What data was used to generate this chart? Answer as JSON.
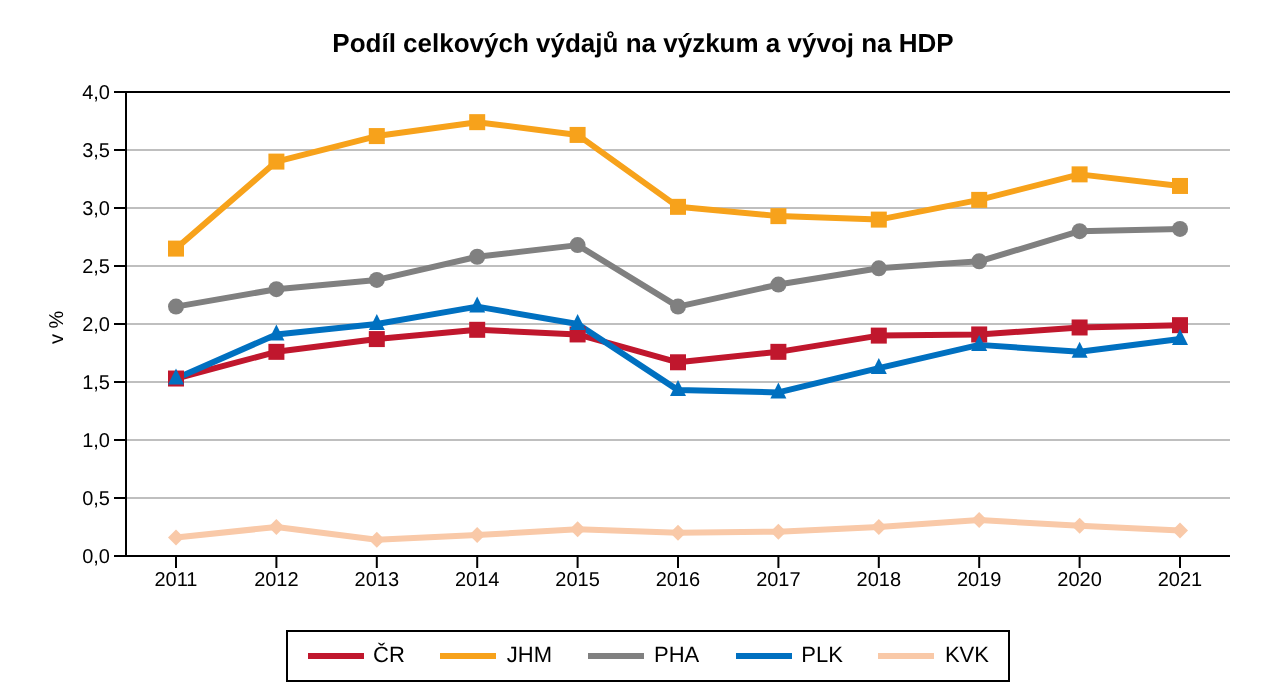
{
  "chart_data": {
    "type": "line",
    "title": "Podíl celkových výdajů na výzkum a vývoj na HDP",
    "ylabel": "v %",
    "categories": [
      "2011",
      "2012",
      "2013",
      "2014",
      "2015",
      "2016",
      "2017",
      "2018",
      "2019",
      "2020",
      "2021"
    ],
    "series": [
      {
        "name": "ČR",
        "color": "#c0172d",
        "marker": "square",
        "values": [
          1.53,
          1.76,
          1.87,
          1.95,
          1.91,
          1.67,
          1.76,
          1.9,
          1.91,
          1.97,
          1.99
        ]
      },
      {
        "name": "JHM",
        "color": "#f7a21b",
        "marker": "square",
        "values": [
          2.65,
          3.4,
          3.62,
          3.74,
          3.63,
          3.01,
          2.93,
          2.9,
          3.07,
          3.29,
          3.19
        ]
      },
      {
        "name": "PHA",
        "color": "#808080",
        "marker": "circle",
        "values": [
          2.15,
          2.3,
          2.38,
          2.58,
          2.68,
          2.15,
          2.34,
          2.48,
          2.54,
          2.8,
          2.82
        ]
      },
      {
        "name": "PLK",
        "color": "#0070c0",
        "marker": "triangle",
        "values": [
          1.53,
          1.91,
          2.0,
          2.15,
          2.0,
          1.43,
          1.41,
          1.62,
          1.82,
          1.76,
          1.87
        ]
      },
      {
        "name": "KVK",
        "color": "#f9c9a8",
        "marker": "diamond",
        "values": [
          0.16,
          0.25,
          0.14,
          0.18,
          0.23,
          0.2,
          0.21,
          0.25,
          0.31,
          0.26,
          0.22
        ]
      }
    ],
    "ylim": [
      0,
      4
    ],
    "yticks": [
      {
        "value": 0,
        "label": "0,0"
      },
      {
        "value": 0.5,
        "label": "0,5"
      },
      {
        "value": 1,
        "label": "1,0"
      },
      {
        "value": 1.5,
        "label": "1,5"
      },
      {
        "value": 2,
        "label": "2,0"
      },
      {
        "value": 2.5,
        "label": "2,5"
      },
      {
        "value": 3,
        "label": "3,0"
      },
      {
        "value": 3.5,
        "label": "3,5"
      },
      {
        "value": 4,
        "label": "4,0"
      }
    ],
    "grid": "y",
    "legend": "bottom",
    "line_style": "solid"
  }
}
